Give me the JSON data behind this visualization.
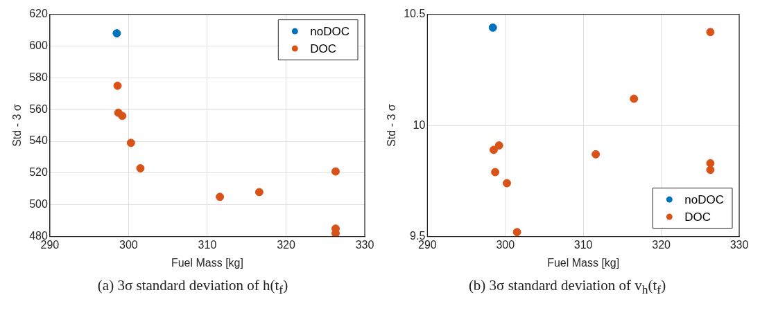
{
  "chart_data": [
    {
      "type": "scatter",
      "xlabel": "Fuel Mass [kg]",
      "ylabel": "Std - 3 σ",
      "annotations": [
        "(a) 3σ standard deviation of h(t$_{f}$)"
      ],
      "xlim": [
        290,
        330
      ],
      "xticks": [
        290,
        300,
        310,
        320,
        330
      ],
      "ylim": [
        480,
        620
      ],
      "yticks": [
        480,
        500,
        520,
        540,
        560,
        580,
        600,
        620
      ],
      "grid": true,
      "legend": "top right",
      "marker": "circle",
      "series": [
        {
          "name": "noDOC",
          "color": "#0072bd",
          "x": [
            298.5
          ],
          "values": [
            608
          ]
        },
        {
          "name": "DOC",
          "color": "#d95319",
          "x": [
            298.6,
            298.7,
            299.2,
            300.3,
            301.5,
            311.6,
            316.6,
            326.3,
            326.3,
            326.3
          ],
          "values": [
            575,
            558,
            556,
            539,
            523,
            505,
            508,
            521,
            485,
            482
          ]
        }
      ]
    },
    {
      "type": "scatter",
      "xlabel": "Fuel Mass [kg]",
      "ylabel": "Std - 3 σ",
      "annotations": [
        "(b) 3σ standard deviation of v$_{h}$(t$_{f}$)"
      ],
      "xlim": [
        290,
        330
      ],
      "xticks": [
        290,
        300,
        310,
        320,
        330
      ],
      "ylim": [
        9.5,
        10.5
      ],
      "yticks": [
        9.5,
        10,
        10.5
      ],
      "grid": true,
      "legend": "bottom right",
      "marker": "circle",
      "series": [
        {
          "name": "noDOC",
          "color": "#0072bd",
          "x": [
            298.4
          ],
          "values": [
            10.44
          ]
        },
        {
          "name": "DOC",
          "color": "#d95319",
          "x": [
            326.3,
            316.5,
            299.2,
            298.5,
            311.6,
            326.3,
            326.3,
            298.7,
            300.2,
            301.5
          ],
          "values": [
            10.42,
            10.12,
            9.91,
            9.89,
            9.87,
            9.83,
            9.8,
            9.79,
            9.74,
            9.52
          ]
        }
      ]
    }
  ]
}
